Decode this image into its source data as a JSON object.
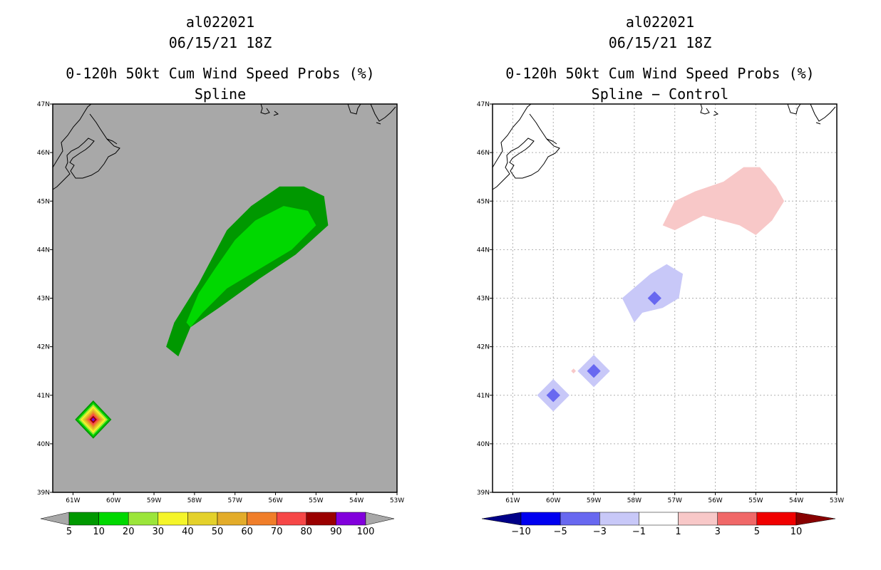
{
  "chart_data": [
    {
      "type": "filled-contour-map",
      "header": {
        "storm_id": "al022021",
        "datetime": "06/15/21 18Z"
      },
      "title": "0-120h 50kt Cum Wind Speed Probs (%)",
      "subtitle": "Spline",
      "lon_labels": [
        "61W",
        "60W",
        "59W",
        "58W",
        "57W",
        "56W",
        "55W",
        "54W",
        "53W"
      ],
      "lat_labels": [
        "39N",
        "40N",
        "41N",
        "42N",
        "43N",
        "44N",
        "45N",
        "46N",
        "47N"
      ],
      "lon_range": [
        -61.5,
        -53
      ],
      "lat_range": [
        39,
        47
      ],
      "background": "#a8a8a8",
      "colorbar": {
        "levels": [
          "5",
          "10",
          "20",
          "30",
          "40",
          "50",
          "60",
          "70",
          "80",
          "90",
          "100"
        ],
        "colors": [
          "#009800",
          "#00d800",
          "#9be53a",
          "#f5f52a",
          "#e4d12b",
          "#e3ac2a",
          "#f07e2a",
          "#f64747",
          "#9a0000",
          "#8200dc"
        ],
        "under_color": "#a8a8a8",
        "over_color": "#a8a8a8"
      },
      "features": [
        {
          "name": "swath-5pct",
          "value": 5,
          "color": "#009800",
          "polygon": [
            [
              -58.7,
              42.0
            ],
            [
              -58.5,
              42.5
            ],
            [
              -57.9,
              43.3
            ],
            [
              -57.2,
              44.4
            ],
            [
              -56.6,
              44.9
            ],
            [
              -55.9,
              45.3
            ],
            [
              -55.3,
              45.3
            ],
            [
              -54.8,
              45.1
            ],
            [
              -54.7,
              44.5
            ],
            [
              -55.5,
              43.9
            ],
            [
              -56.4,
              43.4
            ],
            [
              -57.4,
              42.8
            ],
            [
              -58.1,
              42.4
            ],
            [
              -58.4,
              41.8
            ]
          ]
        },
        {
          "name": "swath-10pct",
          "value": 10,
          "color": "#00d800",
          "polygon": [
            [
              -58.2,
              42.5
            ],
            [
              -57.9,
              43.1
            ],
            [
              -57.5,
              43.6
            ],
            [
              -57.0,
              44.2
            ],
            [
              -56.5,
              44.6
            ],
            [
              -55.8,
              44.9
            ],
            [
              -55.2,
              44.8
            ],
            [
              -55.0,
              44.5
            ],
            [
              -55.6,
              44.0
            ],
            [
              -56.4,
              43.6
            ],
            [
              -57.2,
              43.2
            ],
            [
              -57.8,
              42.7
            ],
            [
              -58.1,
              42.4
            ]
          ]
        },
        {
          "name": "point-peak",
          "lon": -60.5,
          "lat": 40.5,
          "peak_value": 100,
          "nested_levels": [
            5,
            10,
            20,
            30,
            40,
            50,
            60,
            70,
            80,
            90
          ]
        }
      ]
    },
    {
      "type": "filled-contour-map",
      "header": {
        "storm_id": "al022021",
        "datetime": "06/15/21 18Z"
      },
      "title": "0-120h 50kt Cum Wind Speed Probs (%)",
      "subtitle": "Spline − Control",
      "lon_labels": [
        "61W",
        "60W",
        "59W",
        "58W",
        "57W",
        "56W",
        "55W",
        "54W",
        "53W"
      ],
      "lat_labels": [
        "39N",
        "40N",
        "41N",
        "42N",
        "43N",
        "44N",
        "45N",
        "46N",
        "47N"
      ],
      "lon_range": [
        -61.5,
        -53
      ],
      "lat_range": [
        39,
        47
      ],
      "background": "#ffffff",
      "grid": true,
      "colorbar": {
        "levels": [
          "−10",
          "−5",
          "−3",
          "−1",
          "1",
          "3",
          "5",
          "10"
        ],
        "colors": [
          "#0000f0",
          "#6868f0",
          "#c8c8f8",
          "#ffffff",
          "#f8c8c8",
          "#f06868",
          "#f00000"
        ],
        "under_color": "#000088",
        "over_color": "#880000"
      },
      "features": [
        {
          "name": "diff-pos-1-3",
          "range": [
            1,
            3
          ],
          "color": "#f8c8c8",
          "polygon": [
            [
              -57.3,
              44.5
            ],
            [
              -57.0,
              45.0
            ],
            [
              -56.5,
              45.2
            ],
            [
              -55.8,
              45.4
            ],
            [
              -55.3,
              45.7
            ],
            [
              -54.9,
              45.7
            ],
            [
              -54.5,
              45.3
            ],
            [
              -54.3,
              45.0
            ],
            [
              -54.6,
              44.6
            ],
            [
              -55.0,
              44.3
            ],
            [
              -55.4,
              44.5
            ],
            [
              -56.3,
              44.7
            ],
            [
              -57.0,
              44.4
            ]
          ]
        },
        {
          "name": "diff-neg-1-3-central",
          "range": [
            -3,
            -1
          ],
          "color": "#c8c8f8",
          "polygon": [
            [
              -58.3,
              43.0
            ],
            [
              -57.6,
              43.5
            ],
            [
              -57.2,
              43.7
            ],
            [
              -56.8,
              43.5
            ],
            [
              -56.9,
              43.0
            ],
            [
              -57.3,
              42.8
            ],
            [
              -57.8,
              42.7
            ],
            [
              -58.0,
              42.5
            ]
          ]
        },
        {
          "name": "diff-neg-3-5-central",
          "range": [
            -5,
            -3
          ],
          "color": "#6868f0",
          "lon": -57.5,
          "lat": 43.0
        },
        {
          "name": "diff-neg-1-3-sw1",
          "range": [
            -3,
            -1
          ],
          "color": "#c8c8f8",
          "lon": -60.0,
          "lat": 41.0
        },
        {
          "name": "diff-neg-3-5-sw1",
          "range": [
            -5,
            -3
          ],
          "color": "#6868f0",
          "lon": -60.0,
          "lat": 41.0
        },
        {
          "name": "diff-neg-1-3-sw2",
          "range": [
            -3,
            -1
          ],
          "color": "#c8c8f8",
          "lon": -59.0,
          "lat": 41.5
        },
        {
          "name": "diff-neg-3-5-sw2",
          "range": [
            -5,
            -3
          ],
          "color": "#6868f0",
          "lon": -59.0,
          "lat": 41.5
        },
        {
          "name": "diff-pos-speck",
          "range": [
            1,
            3
          ],
          "color": "#f8c8c8",
          "lon": -59.5,
          "lat": 41.5
        }
      ]
    }
  ]
}
